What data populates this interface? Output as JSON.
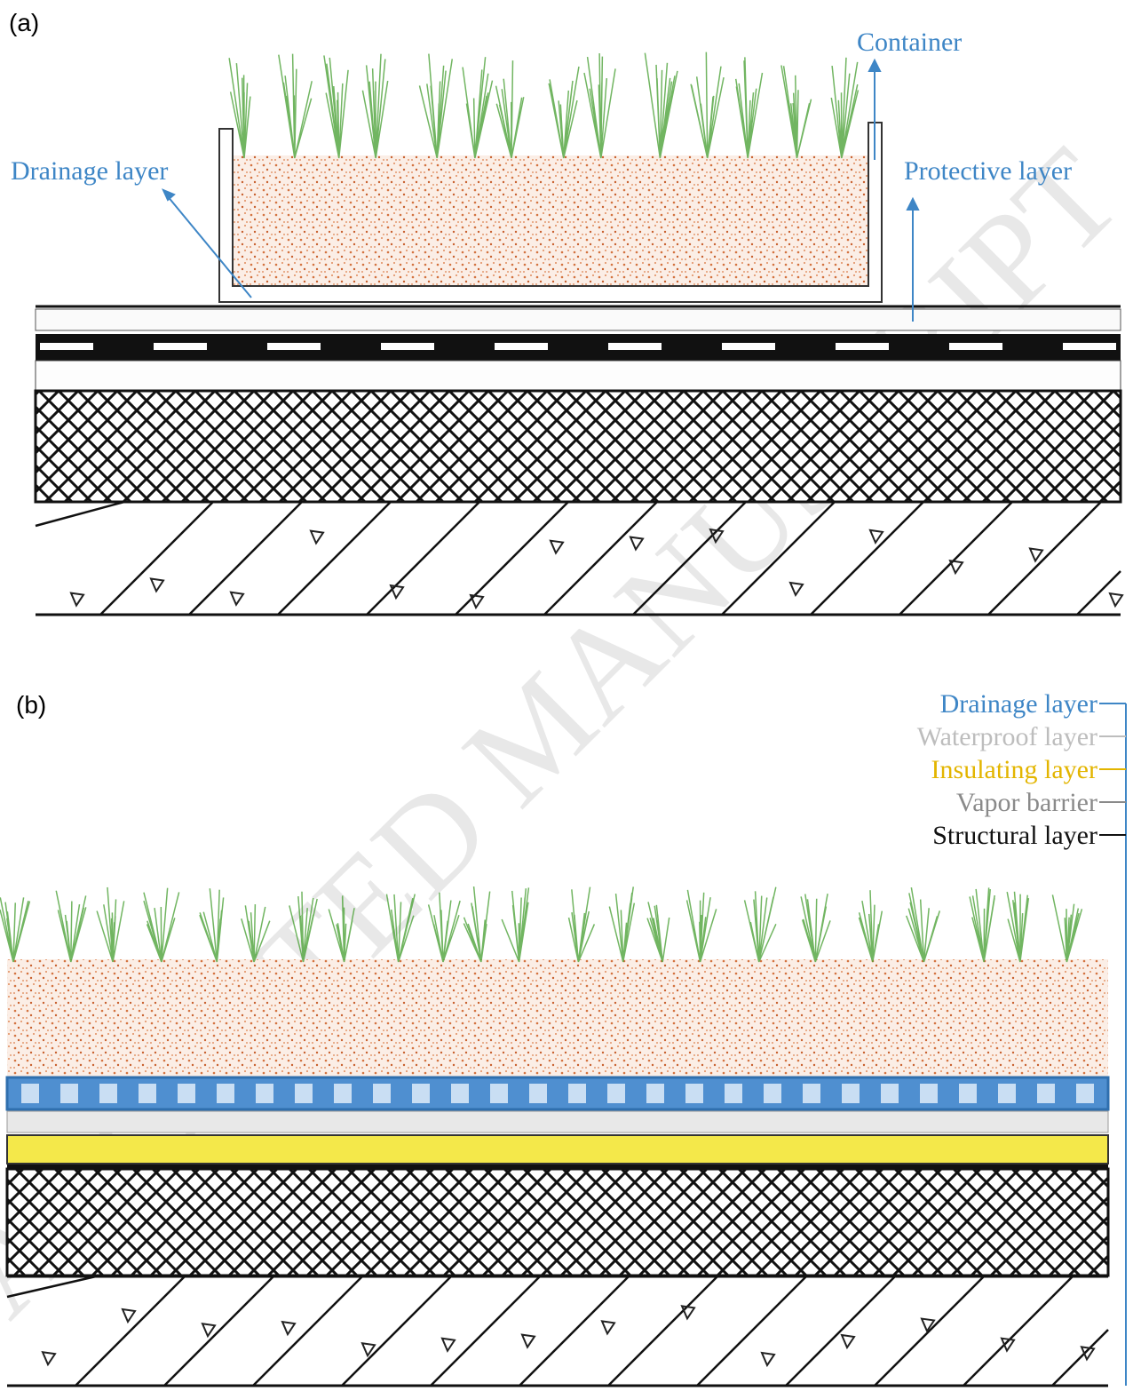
{
  "panel_a": {
    "label": "(a)",
    "labels": {
      "container": "Container",
      "drainage": "Drainage layer",
      "protective": "Protective layer"
    }
  },
  "panel_b": {
    "label": "(b)",
    "layers": [
      "Drainage layer",
      "Waterproof layer",
      "Insulating layer",
      "Vapor barrier",
      "Structural layer"
    ]
  },
  "watermark": "ACCEPTED MANUSCRIPT"
}
